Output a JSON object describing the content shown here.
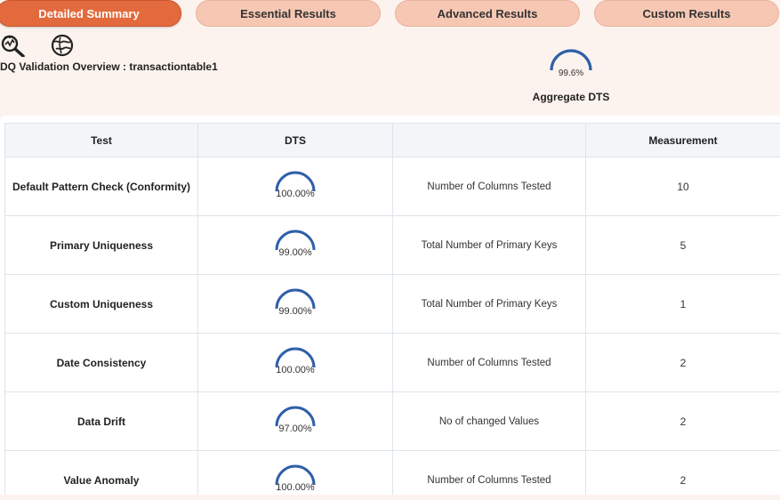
{
  "tabs": [
    {
      "label": "Detailed Summary",
      "active": true
    },
    {
      "label": "Essential Results",
      "active": false
    },
    {
      "label": "Advanced Results",
      "active": false
    },
    {
      "label": "Custom Results",
      "active": false
    }
  ],
  "toolbar": {
    "icons": [
      "search-analytics-icon",
      "globe-icon"
    ]
  },
  "overview_title": "DQ Validation Overview : transactiontable1",
  "aggregate": {
    "value": "99.6%",
    "label": "Aggregate DTS",
    "fraction": 0.996
  },
  "table": {
    "headers": [
      "Test",
      "DTS",
      "",
      "Measurement"
    ],
    "rows": [
      {
        "test": "Default Pattern Check (Conformity)",
        "dts": "100.00%",
        "metric": "Number of Columns Tested",
        "measurement": "10"
      },
      {
        "test": "Primary Uniqueness",
        "dts": "99.00%",
        "metric": "Total Number of Primary Keys",
        "measurement": "5"
      },
      {
        "test": "Custom Uniqueness",
        "dts": "99.00%",
        "metric": "Total Number of Primary Keys",
        "measurement": "1"
      },
      {
        "test": "Date Consistency",
        "dts": "100.00%",
        "metric": "Number of Columns Tested",
        "measurement": "2"
      },
      {
        "test": "Data Drift",
        "dts": "97.00%",
        "metric": "No of changed Values",
        "measurement": "2"
      },
      {
        "test": "Value Anomaly",
        "dts": "100.00%",
        "metric": "Number of Columns Tested",
        "measurement": "2"
      }
    ]
  },
  "colors": {
    "active_tab": "#e36a3d",
    "inactive_tab": "#f6c7b3",
    "gauge": "#2f5fa8",
    "page_bg": "#fdf3ee"
  }
}
